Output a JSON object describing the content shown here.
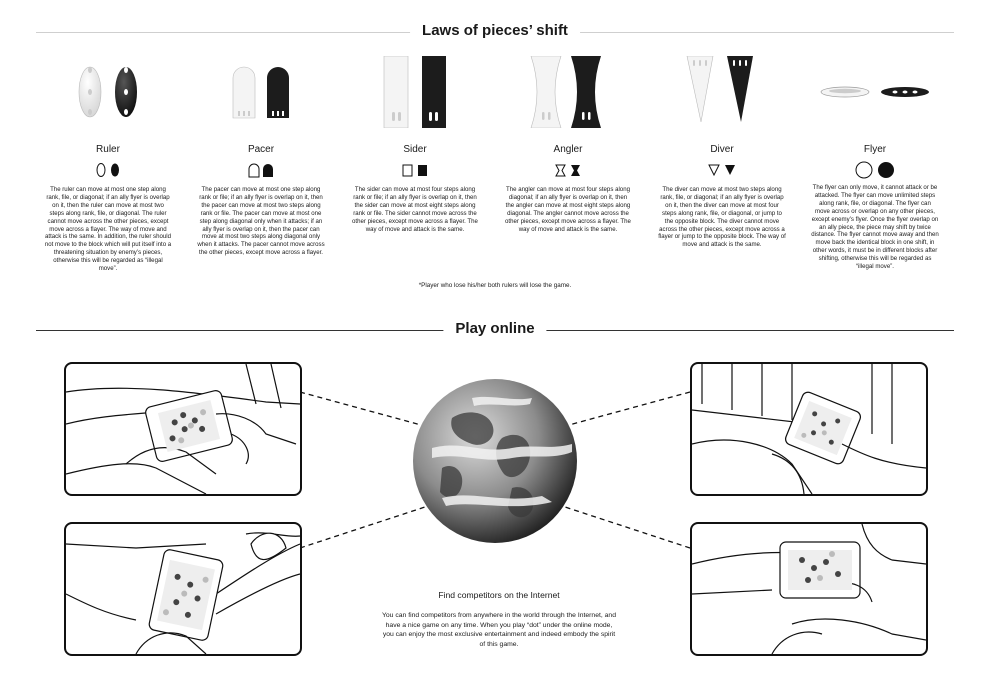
{
  "laws": {
    "title": "Laws of pieces’ shift",
    "pieces": [
      {
        "name": "Ruler",
        "desc": "The ruler can move at most one step along rank, file, or diagonal; if an ally flyer is overlap on it, then the ruler can move at most two steps along rank, file, or diagonal. The ruler cannot move across the other pieces, except move across a flayer. The way of move and attack is the same. In addition, the ruler should not move to the block which will put itself into a threatening situation by enemy’s pieces, otherwise this will be regarded as “illegal move”."
      },
      {
        "name": "Pacer",
        "desc": "The pacer can move at most one step along rank or file; if an ally flyer is overlap on it, then the pacer can move at most two steps along rank or file. The pacer can move at most one step along diagonal only when it attacks; if an ally flyer is overlap on it, then the pacer can move at most two steps along diagonal only when it attacks. The pacer cannot move across the other pieces, except move across a flayer."
      },
      {
        "name": "Sider",
        "desc": "The sider can move at most four steps along rank or file; if an ally flyer is overlap on it, then the sider can move at most eight steps along rank or file. The sider cannot move across the other pieces, except move across a flayer. The way of move and attack is the same."
      },
      {
        "name": "Angler",
        "desc": "The angler can move at most four steps along diagonal; if an ally flyer is overlap on it, then the angler can move at most eight steps along diagonal. The angler cannot move across the other pieces, except move across a flayer. The way of move and attack is the same."
      },
      {
        "name": "Diver",
        "desc": "The diver can move at most two steps along rank, file, or diagonal; if an ally flyer is overlap on it, then the diver can move at most four steps along rank, file, or diagonal, or jump to the opposite block. The diver cannot move across the other pieces, except move across a flayer or jump to the opposite block. The way of move and attack is the same."
      },
      {
        "name": "Flyer",
        "desc": "The flyer can only move, it cannot attack or be attacked. The flyer can move unlimited steps along rank, file, or diagonal. The flyer can move across or overlap on any other pieces, except enemy’s flyer. Once the flyer overlap on an ally piece, the piece may shift by twice distance. The flyer cannot move away and then move back the identical block in one shift, in other words, it must be in different blocks after shifting, otherwise this will be regarded as “illegal move”."
      }
    ],
    "footnote": "*Player who lose his/her both rulers will lose the game."
  },
  "online": {
    "title": "Play online",
    "heading": "Find competitors on the Internet",
    "body": "You can find competitors from anywhere in the world through the Internet, and have a nice game on any time. When you play “dot” under the online mode, you can enjoy the most exclusive entertainment and indeed embody the spirit of this game."
  },
  "colors": {
    "ink": "#111111",
    "white_piece": "#f4f4f4",
    "black_piece": "#1c1c1c"
  },
  "icons": [
    "ruler-piece-icon",
    "pacer-piece-icon",
    "sider-piece-icon",
    "angler-piece-icon",
    "diver-piece-icon",
    "flyer-piece-icon",
    "globe-icon"
  ]
}
